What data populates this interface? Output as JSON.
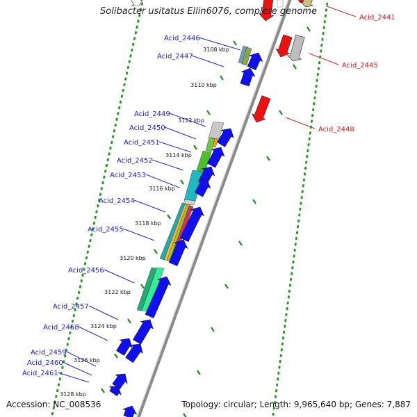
{
  "title": "Solibacter usitatus Ellin6076, complete genome",
  "footer": {
    "accession": "Accession: NC_008536",
    "summary": "Topology: circular; Length: 9,965,640 bp; Genes: 7,887"
  },
  "colors": {
    "forward_label": "#1a1acc",
    "reverse_label": "#dd1111",
    "backbone": "#8a8a8a",
    "tick_mark": "#1d8a1d"
  },
  "ruler": [
    {
      "label": "3108 kbp"
    },
    {
      "label": "3110 kbp"
    },
    {
      "label": "3112 kbp"
    },
    {
      "label": "3114 kbp"
    },
    {
      "label": "3116 kbp"
    },
    {
      "label": "3118 kbp"
    },
    {
      "label": "3120 kbp"
    },
    {
      "label": "3122 kbp"
    },
    {
      "label": "3124 kbp"
    },
    {
      "label": "3126 kbp"
    },
    {
      "label": "3128 kbp"
    }
  ],
  "genes_forward": [
    {
      "name": "Acid_2446"
    },
    {
      "name": "Acid_2447"
    },
    {
      "name": "Acid_2449"
    },
    {
      "name": "Acid_2450"
    },
    {
      "name": "Acid_2451"
    },
    {
      "name": "Acid_2452"
    },
    {
      "name": "Acid_2453"
    },
    {
      "name": "Acid_2454"
    },
    {
      "name": "Acid_2455"
    },
    {
      "name": "Acid_2456"
    },
    {
      "name": "Acid_2457"
    },
    {
      "name": "Acid_2458"
    },
    {
      "name": "Acid_2459"
    },
    {
      "name": "Acid_2460"
    },
    {
      "name": "Acid_2461"
    }
  ],
  "genes_reverse": [
    {
      "name": "Acid_2441"
    },
    {
      "name": "Acid_2445"
    },
    {
      "name": "Acid_2448"
    }
  ]
}
